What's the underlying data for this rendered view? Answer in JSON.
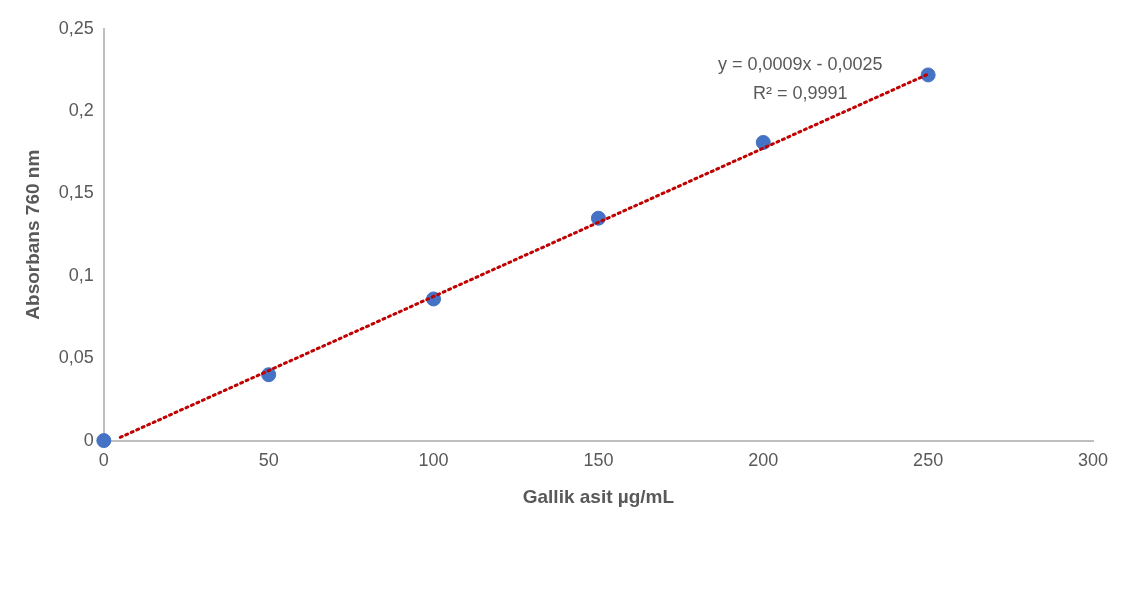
{
  "chart_data": {
    "type": "scatter",
    "xlabel": "Gallik asit µg/mL",
    "ylabel": "Absorbans 760 nm",
    "series": [
      {
        "type": "scatter",
        "color": "#4472c4",
        "x": [
          0,
          50,
          100,
          150,
          200,
          250
        ],
        "values": [
          0,
          0.04,
          0.086,
          0.135,
          0.181,
          0.222
        ],
        "marker": "circle"
      },
      {
        "type": "line",
        "color": "#c00000",
        "x": [
          5,
          250
        ],
        "values": [
          0.002,
          0.2225
        ],
        "line_style": "dotted",
        "marker": "none"
      }
    ],
    "xlim": [
      0,
      300
    ],
    "xticks": [
      0,
      50,
      100,
      150,
      200,
      250,
      300
    ],
    "ylim": [
      0,
      0.25
    ],
    "yticks": [
      0,
      {
        "value": 0.05,
        "label": "0,05"
      },
      {
        "value": 0.1,
        "label": "0,1"
      },
      {
        "value": 0.15,
        "label": "0,15"
      },
      {
        "value": 0.2,
        "label": "0,2"
      },
      {
        "value": 0.25,
        "label": "0,25"
      }
    ],
    "annotations": [
      "y = 0,0009x - 0,0025",
      "R² = 0,9991"
    ],
    "grid": false,
    "legend": false
  }
}
